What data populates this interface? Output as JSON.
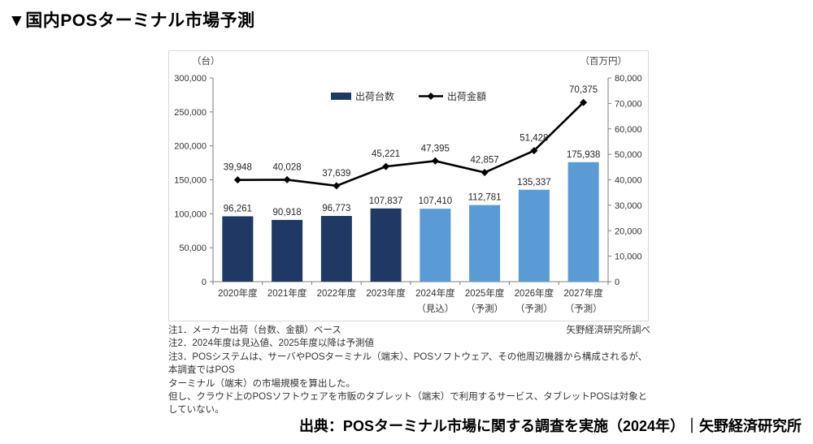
{
  "title": "▼国内POSターミナル市場予測",
  "chart_data": {
    "type": "bar+line combo",
    "categories": [
      "2020年度",
      "2021年度",
      "2022年度",
      "2023年度",
      "2024年度",
      "2025年度",
      "2026年度",
      "2027年度"
    ],
    "category_notes": [
      "",
      "",
      "",
      "",
      "（見込）",
      "（予測）",
      "（予測）",
      "（予測）"
    ],
    "series": [
      {
        "name": "出荷台数",
        "type": "bar",
        "axis": "left",
        "values": [
          96261,
          90918,
          96773,
          107837,
          107410,
          112781,
          135337,
          175938
        ],
        "colors": [
          "#1F3864",
          "#1F3864",
          "#1F3864",
          "#1F3864",
          "#5B9BD5",
          "#5B9BD5",
          "#5B9BD5",
          "#5B9BD5"
        ]
      },
      {
        "name": "出荷金額",
        "type": "line",
        "axis": "right",
        "values": [
          39948,
          40028,
          37639,
          45221,
          47395,
          42857,
          51428,
          70375
        ],
        "color": "#000000"
      }
    ],
    "left_axis": {
      "unit": "（台）",
      "min": 0,
      "max": 300000,
      "step": 50000
    },
    "right_axis": {
      "unit": "（百万円）",
      "min": 0,
      "max": 80000,
      "step": 10000
    },
    "grid": false,
    "legend_position": "top-center",
    "axis_color": "#7f7f7f"
  },
  "notes": {
    "lines": [
      "注1．メーカー出荷（台数、金額）ベース",
      "注2．2024年度は見込値、2025年度以降は予測値",
      "注3．POSシステムは、サーバやPOSターミナル（端末）、POSソフトウェア、その他周辺機器から構成されるが、本調査ではPOS",
      "ターミナル（端末）の市場規模を算出した。",
      "但し、クラウド上のPOSソフトウェアを市販のタブレット（端末）で利用するサービス、タブレットPOSは対象としていない。"
    ],
    "credit": "矢野経済研究所調べ"
  },
  "source": "出典：POSターミナル市場に関する調査を実施（2024年）｜矢野経済研究所"
}
